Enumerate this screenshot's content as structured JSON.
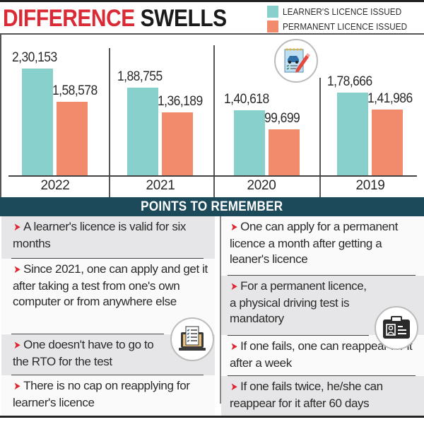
{
  "header": {
    "title_part1": "DIFFERENCE",
    "title_part2": "SWELLS",
    "title_part1_color": "#d92a35",
    "title_part2_color": "#1a1a1a"
  },
  "legend": [
    {
      "label": "LEARNER'S LICENCE ISSUED",
      "color": "#88d0cc"
    },
    {
      "label": "PERMANENT LICENCE ISSUED",
      "color": "#f18b6b"
    }
  ],
  "chart_data": {
    "type": "bar",
    "title": "DIFFERENCE SWELLS",
    "xlabel": "",
    "ylabel": "",
    "categories": [
      "2022",
      "2021",
      "2020",
      "2019"
    ],
    "series": [
      {
        "name": "LEARNER'S LICENCE ISSUED",
        "color": "#88d0cc",
        "values": [
          230153,
          188755,
          140618,
          178666
        ],
        "labels": [
          "2,30,153",
          "1,88,755",
          "1,40,618",
          "1,78,666"
        ]
      },
      {
        "name": "PERMANENT LICENCE ISSUED",
        "color": "#f18b6b",
        "values": [
          158578,
          136189,
          99699,
          141986
        ],
        "labels": [
          "1,58,578",
          "1,36,189",
          "99,699",
          "1,41,986"
        ]
      }
    ],
    "grid": false,
    "legend_position": "top-right",
    "ylim": [
      0,
      240000
    ]
  },
  "banner": {
    "title": "POINTS TO REMEMBER",
    "color": "#1c4a5a"
  },
  "points": {
    "left": [
      "A learner's licence is valid for six months",
      "Since 2021, one can apply and get it after taking a test from one's own computer or from anywhere else",
      "One doesn't have to go to the RTO for the test",
      "There is no cap on reapplying for learner's licence"
    ],
    "right": [
      "One can apply for a permanent licence a month after getting a leaner's licence",
      "For a permanent licence, a physical driving test is mandatory",
      "If one fails, one can reappear for it after a week",
      "If one fails twice, he/she can reappear for it after 60 days"
    ],
    "bullet": "➤"
  },
  "icons": {
    "chart_icon": "driving-checklist-icon",
    "left_icon": "laptop-checklist-icon",
    "right_icon": "id-card-icon"
  }
}
